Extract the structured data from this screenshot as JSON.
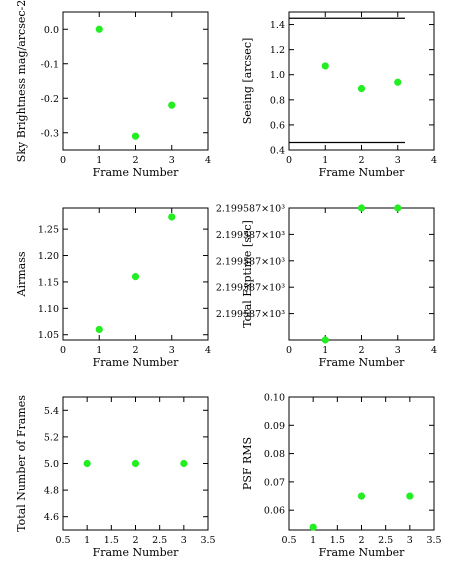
{
  "colors": {
    "point": "#22ee22",
    "axis": "#000000",
    "background": "#ffffff"
  },
  "chart_data": [
    {
      "type": "scatter",
      "xlabel": "Frame Number",
      "ylabel": "Sky Brightness mag/arcsec-2",
      "xlim": [
        0,
        4
      ],
      "ylim": [
        -0.35,
        0.05
      ],
      "xticks": [
        0,
        1,
        2,
        3,
        4
      ],
      "yticks": [
        0.0,
        -0.1,
        -0.2,
        -0.3
      ],
      "ytick_labels": [
        "0.0",
        "-0.1",
        "-0.2",
        "-0.3"
      ],
      "grid": false,
      "x": [
        1,
        2,
        3
      ],
      "y": [
        0.0,
        -0.31,
        -0.22
      ]
    },
    {
      "type": "scatter",
      "xlabel": "Frame Number",
      "ylabel": "Seeing [arcsec]",
      "xlim": [
        0,
        4
      ],
      "ylim": [
        0.4,
        1.5
      ],
      "xticks": [
        0,
        1,
        2,
        3,
        4
      ],
      "yticks": [
        0.4,
        0.6,
        0.8,
        1.0,
        1.2,
        1.4
      ],
      "ytick_labels": [
        "0.4",
        "0.6",
        "0.8",
        "1.0",
        "1.2",
        "1.4"
      ],
      "grid": false,
      "x": [
        1,
        2,
        3
      ],
      "y": [
        1.07,
        0.89,
        0.94
      ],
      "reference_lines": [
        1.45,
        0.46
      ],
      "reference_line_xrange": [
        0,
        3.2
      ]
    },
    {
      "type": "scatter",
      "xlabel": "Frame Number",
      "ylabel": "Airmass",
      "xlim": [
        0,
        4
      ],
      "ylim": [
        1.04,
        1.29
      ],
      "xticks": [
        0,
        1,
        2,
        3,
        4
      ],
      "yticks": [
        1.05,
        1.1,
        1.15,
        1.2,
        1.25
      ],
      "ytick_labels": [
        "1.05",
        "1.10",
        "1.15",
        "1.20",
        "1.25"
      ],
      "grid": false,
      "x": [
        1,
        2,
        3
      ],
      "y": [
        1.06,
        1.16,
        1.273
      ]
    },
    {
      "type": "scatter",
      "xlabel": "Frame Number",
      "ylabel": "Total Exptime [sec]",
      "xlim": [
        0,
        4
      ],
      "ylim": [
        0,
        1
      ],
      "xticks": [
        0,
        1,
        2,
        3,
        4
      ],
      "yticks": [
        1.0,
        0.8,
        0.6,
        0.4,
        0.2
      ],
      "ytick_labels": [
        "2.199587×10³",
        "2.199587×10³",
        "2.199587×10³",
        "2.199587×10³",
        "2.199587×10³"
      ],
      "grid": false,
      "x": [
        1,
        2,
        3
      ],
      "y": [
        0.0,
        1.0,
        1.0
      ]
    },
    {
      "type": "scatter",
      "xlabel": "Frame Number",
      "ylabel": "Total Number of Frames",
      "xlim": [
        0.5,
        3.5
      ],
      "ylim": [
        4.5,
        5.5
      ],
      "xticks": [
        0.5,
        1.0,
        1.5,
        2.0,
        2.5,
        3.0,
        3.5
      ],
      "yticks": [
        4.6,
        4.8,
        5.0,
        5.2,
        5.4
      ],
      "ytick_labels": [
        "4.6",
        "4.8",
        "5.0",
        "5.2",
        "5.4"
      ],
      "grid": false,
      "x": [
        1,
        2,
        3
      ],
      "y": [
        5.0,
        5.0,
        5.0
      ]
    },
    {
      "type": "scatter",
      "xlabel": "Frame Number",
      "ylabel": "PSF RMS",
      "xlim": [
        0.5,
        3.5
      ],
      "ylim": [
        0.053,
        0.1
      ],
      "xticks": [
        0.5,
        1.0,
        1.5,
        2.0,
        2.5,
        3.0,
        3.5
      ],
      "yticks": [
        0.06,
        0.07,
        0.08,
        0.09,
        0.1
      ],
      "ytick_labels": [
        "0.06",
        "0.07",
        "0.08",
        "0.09",
        "0.10"
      ],
      "grid": false,
      "x": [
        1,
        2,
        3
      ],
      "y": [
        0.054,
        0.065,
        0.065
      ]
    }
  ]
}
